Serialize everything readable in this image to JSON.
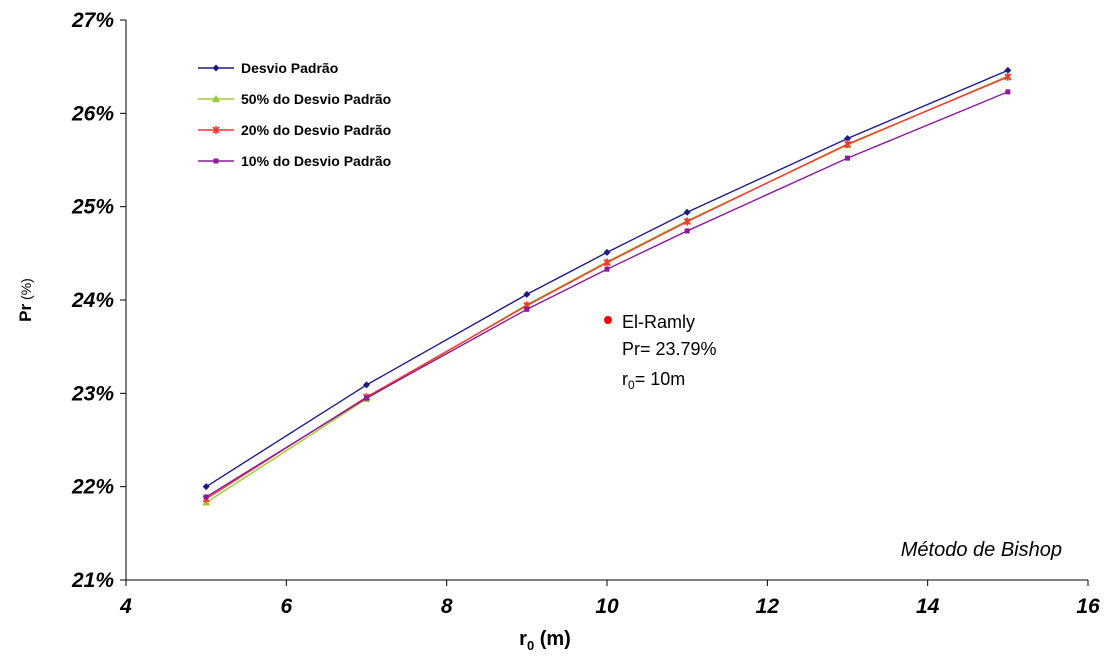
{
  "chart_data": {
    "type": "line",
    "title": "",
    "xlabel_main": "r",
    "xlabel_sub": "0",
    "xlabel_unit": " (m)",
    "ylabel_main": "Pr",
    "ylabel_unit": " (%)",
    "xlim": [
      4,
      16
    ],
    "ylim": [
      21,
      27
    ],
    "xticks": [
      "4",
      "6",
      "8",
      "10",
      "12",
      "14",
      "16"
    ],
    "yticks": [
      "21%",
      "22%",
      "23%",
      "24%",
      "25%",
      "26%",
      "27%"
    ],
    "grid": false,
    "legend_position": "top-left",
    "x": [
      5,
      7,
      9,
      10,
      11,
      13,
      15
    ],
    "series": [
      {
        "name": "Desvio Padrão",
        "color": "#1a1a8c",
        "marker": "diamond",
        "values": [
          22.0,
          23.09,
          24.06,
          24.51,
          24.94,
          25.73,
          26.46
        ]
      },
      {
        "name": "50% do Desvio Padrão",
        "color": "#9acd32",
        "marker": "triangle",
        "values": [
          21.83,
          22.94,
          23.95,
          24.41,
          24.85,
          25.66,
          26.4
        ]
      },
      {
        "name": "20% do Desvio Padrão",
        "color": "#ff3333",
        "marker": "star",
        "values": [
          21.87,
          22.96,
          23.94,
          24.4,
          24.84,
          25.67,
          26.39
        ]
      },
      {
        "name": "10% do Desvio Padrão",
        "color": "#8b1a9e",
        "marker": "square",
        "values": [
          21.89,
          22.95,
          23.9,
          24.33,
          24.74,
          25.52,
          26.23
        ]
      }
    ],
    "annotation": {
      "point": {
        "x": 10,
        "y": 23.79,
        "color": "#ff0000"
      },
      "line1": "El-Ramly",
      "line2": "Pr= 23.79%",
      "line3_main": "r",
      "line3_sub": "0",
      "line3_rest": "= 10m"
    },
    "method_label": "Método de Bishop"
  }
}
